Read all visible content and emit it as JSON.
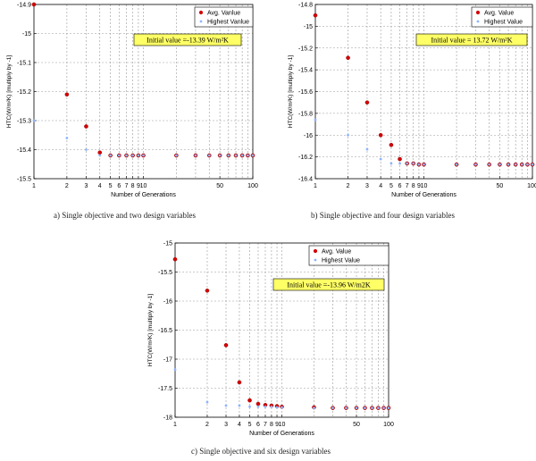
{
  "figure": {
    "captions": [
      "a)   Single objective and two design variables",
      "b)  Single objective and four design variables",
      "c)   Single objective and six design variables"
    ]
  },
  "colors": {
    "avg": "#d40000",
    "highest": "#8fb4ff",
    "annotation_bg": "#ffff66",
    "grid": "#999999"
  },
  "chart_data": [
    {
      "type": "scatter",
      "xscale": "log",
      "xlim": [
        1,
        100
      ],
      "ylim": [
        -15.5,
        -14.9
      ],
      "xticks": [
        1,
        2,
        3,
        4,
        5,
        6,
        7,
        8,
        9,
        10,
        50,
        100
      ],
      "xtick_labels": [
        "1",
        "2",
        "3",
        "4",
        "5",
        "6",
        "7",
        "8",
        "9",
        "10",
        "50",
        "100"
      ],
      "yticks": [
        -15.5,
        -15.4,
        -15.3,
        -15.2,
        -15.1,
        -15,
        -14.9
      ],
      "ytick_labels": [
        "-15.5",
        "-15.4",
        "-15.3",
        "-15.2",
        "-15.1",
        "-15",
        "-14.9"
      ],
      "xlabel": "Number of Generations",
      "ylabel": "HTC(W/m²K)  [multiply by -1]",
      "annotation": "Initial value =-13.39 W/m²K",
      "legend_position": "top-right",
      "grid": true,
      "series": [
        {
          "name": "Avg. Vanlue",
          "marker": "dot",
          "x": [
            1,
            2,
            3,
            4,
            5,
            6,
            7,
            8,
            9,
            10,
            20,
            30,
            40,
            50,
            60,
            70,
            80,
            90,
            100
          ],
          "y": [
            -14.9,
            -15.21,
            -15.32,
            -15.41,
            -15.42,
            -15.42,
            -15.42,
            -15.42,
            -15.42,
            -15.42,
            -15.42,
            -15.42,
            -15.42,
            -15.42,
            -15.42,
            -15.42,
            -15.42,
            -15.42,
            -15.42
          ]
        },
        {
          "name": "Highest Vanlue",
          "marker": "star",
          "x": [
            1,
            2,
            3,
            4,
            5,
            6,
            7,
            8,
            9,
            10,
            20,
            30,
            40,
            50,
            60,
            70,
            80,
            90,
            100
          ],
          "y": [
            -15.3,
            -15.36,
            -15.4,
            -15.42,
            -15.42,
            -15.42,
            -15.42,
            -15.42,
            -15.42,
            -15.42,
            -15.42,
            -15.42,
            -15.42,
            -15.42,
            -15.42,
            -15.42,
            -15.42,
            -15.42,
            -15.42
          ]
        }
      ]
    },
    {
      "type": "scatter",
      "xscale": "log",
      "xlim": [
        1,
        100
      ],
      "ylim": [
        -16.4,
        -14.8
      ],
      "xticks": [
        1,
        2,
        3,
        4,
        5,
        6,
        7,
        8,
        9,
        10,
        50,
        100
      ],
      "xtick_labels": [
        "1",
        "2",
        "3",
        "4",
        "5",
        "6",
        "7",
        "8",
        "9",
        "10",
        "50",
        "100"
      ],
      "yticks": [
        -16.4,
        -16.2,
        -16,
        -15.8,
        -15.6,
        -15.4,
        -15.2,
        -15,
        -14.8
      ],
      "ytick_labels": [
        "-16.4",
        "-16.2",
        "-16",
        "-15.8",
        "-15.6",
        "-15.4",
        "-15.2",
        "-15",
        "-14.8"
      ],
      "xlabel": "Number of Generations",
      "ylabel": "HTC(W/m²K)  [multiply by -1]",
      "annotation": "Initial value = 13.72 W/m²K",
      "legend_position": "top-right",
      "grid": true,
      "series": [
        {
          "name": "Avg. Value",
          "marker": "dot",
          "x": [
            1,
            2,
            3,
            4,
            5,
            6,
            7,
            8,
            9,
            10,
            20,
            30,
            40,
            50,
            60,
            70,
            80,
            90,
            100
          ],
          "y": [
            -14.9,
            -15.29,
            -15.7,
            -16.0,
            -16.09,
            -16.22,
            -16.26,
            -16.26,
            -16.27,
            -16.27,
            -16.27,
            -16.27,
            -16.27,
            -16.27,
            -16.27,
            -16.27,
            -16.27,
            -16.27,
            -16.27
          ]
        },
        {
          "name": "Highest Value",
          "marker": "star",
          "x": [
            1,
            2,
            3,
            4,
            5,
            6,
            7,
            8,
            9,
            10,
            20,
            30,
            40,
            50,
            60,
            70,
            80,
            90,
            100
          ],
          "y": [
            -15.86,
            -16.0,
            -16.13,
            -16.22,
            -16.26,
            -16.26,
            -16.26,
            -16.26,
            -16.27,
            -16.27,
            -16.27,
            -16.27,
            -16.27,
            -16.27,
            -16.27,
            -16.27,
            -16.27,
            -16.27,
            -16.27
          ]
        }
      ]
    },
    {
      "type": "scatter",
      "xscale": "log",
      "xlim": [
        1,
        100
      ],
      "ylim": [
        -18,
        -15
      ],
      "xticks": [
        1,
        2,
        3,
        4,
        5,
        6,
        7,
        8,
        9,
        10,
        50,
        100
      ],
      "xtick_labels": [
        "1",
        "2",
        "3",
        "4",
        "5",
        "6",
        "7",
        "8",
        "9",
        "10",
        "50",
        "100"
      ],
      "yticks": [
        -18,
        -17.5,
        -17,
        -16.5,
        -16,
        -15.5,
        -15
      ],
      "ytick_labels": [
        "-18",
        "-17.5",
        "-17",
        "-16.5",
        "-16",
        "-15.5",
        "-15"
      ],
      "xlabel": "Number of Generations",
      "ylabel": "HTC(W/m²K)  [multiply by -1]",
      "annotation": "Initial value =-13.96 W/m2K",
      "legend_position": "top-right",
      "grid": true,
      "series": [
        {
          "name": "Avg. Value",
          "marker": "dot",
          "x": [
            1,
            2,
            3,
            4,
            5,
            6,
            7,
            8,
            9,
            10,
            20,
            30,
            40,
            50,
            60,
            70,
            80,
            90,
            100
          ],
          "y": [
            -15.28,
            -15.82,
            -16.76,
            -17.4,
            -17.71,
            -17.77,
            -17.79,
            -17.8,
            -17.81,
            -17.82,
            -17.83,
            -17.84,
            -17.84,
            -17.84,
            -17.84,
            -17.84,
            -17.84,
            -17.84,
            -17.84
          ]
        },
        {
          "name": "Highest Value",
          "marker": "star",
          "x": [
            1,
            2,
            3,
            4,
            5,
            6,
            7,
            8,
            9,
            10,
            20,
            30,
            40,
            50,
            60,
            70,
            80,
            90,
            100
          ],
          "y": [
            -17.18,
            -17.74,
            -17.8,
            -17.8,
            -17.82,
            -17.82,
            -17.82,
            -17.82,
            -17.83,
            -17.83,
            -17.84,
            -17.84,
            -17.84,
            -17.84,
            -17.84,
            -17.84,
            -17.84,
            -17.84,
            -17.84
          ]
        }
      ]
    }
  ]
}
